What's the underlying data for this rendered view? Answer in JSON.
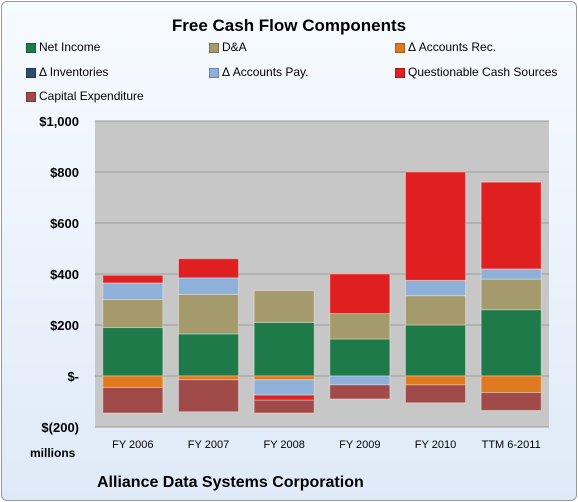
{
  "chart_data": {
    "type": "bar",
    "stacked": true,
    "title": "Free Cash Flow Components",
    "categories": [
      "FY 2006",
      "FY 2007",
      "FY 2008",
      "FY 2009",
      "FY 2010",
      "TTM 6-2011"
    ],
    "series": [
      {
        "name": "Net Income",
        "color": "#1f7a4a",
        "values": [
          190,
          165,
          210,
          145,
          200,
          260
        ]
      },
      {
        "name": "D&A",
        "color": "#a59a6b",
        "values": [
          110,
          155,
          125,
          100,
          115,
          120
        ]
      },
      {
        "name": "Δ Accounts Rec.",
        "color": "#e07a1f",
        "values": [
          -45,
          -15,
          -15,
          0,
          -35,
          -65
        ]
      },
      {
        "name": "Δ Inventories",
        "color": "#2f4a6b",
        "values": [
          0,
          0,
          0,
          0,
          0,
          0
        ]
      },
      {
        "name": "Δ Accounts Pay.",
        "color": "#8fb0d8",
        "values": [
          65,
          65,
          -60,
          -35,
          60,
          40
        ]
      },
      {
        "name": "Questionable Cash Sources",
        "color": "#e02020",
        "values": [
          30,
          75,
          -20,
          155,
          425,
          340
        ]
      },
      {
        "name": "Capital Expenditure",
        "color": "#a04a4a",
        "values": [
          -100,
          -125,
          -50,
          -55,
          -70,
          -70
        ]
      }
    ],
    "ylim": [
      -200,
      1000
    ],
    "yticks": [
      -200,
      0,
      200,
      400,
      600,
      800,
      1000
    ],
    "ytick_labels": [
      "$(200)",
      "$-",
      "$200",
      "$400",
      "$600",
      "$800",
      "$1,000"
    ],
    "ylabel": "millions",
    "xlabel": "",
    "grid": true,
    "legend_position": "top"
  },
  "footer": {
    "company": "Alliance Data Systems Corporation"
  }
}
